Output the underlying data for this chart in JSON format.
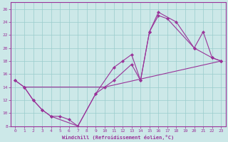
{
  "bg_color": "#cce8e8",
  "line_color": "#993399",
  "grid_color": "#99cccc",
  "xlabel": "Windchill (Refroidissement éolien,°C)",
  "xlim": [
    -0.5,
    23.5
  ],
  "ylim": [
    8,
    27
  ],
  "xticks": [
    0,
    1,
    2,
    3,
    4,
    5,
    6,
    7,
    8,
    9,
    10,
    11,
    12,
    13,
    14,
    15,
    16,
    17,
    18,
    19,
    20,
    21,
    22,
    23
  ],
  "yticks": [
    8,
    10,
    12,
    14,
    16,
    18,
    20,
    22,
    24,
    26
  ],
  "line1_x": [
    0,
    1,
    10,
    23
  ],
  "line1_y": [
    15,
    14,
    14,
    18
  ],
  "line2_x": [
    0,
    1,
    2,
    3,
    4,
    5,
    6,
    7,
    9,
    11,
    13,
    14,
    15,
    16,
    17,
    20,
    21,
    22,
    23
  ],
  "line2_y": [
    15,
    14,
    12,
    10.5,
    9.5,
    9.5,
    9,
    8,
    13,
    15,
    17.5,
    15,
    22.5,
    25,
    24.5,
    20,
    22.5,
    18.5,
    18
  ],
  "line3_x": [
    1,
    2,
    3,
    4,
    7,
    9,
    11,
    12,
    13,
    14,
    15,
    16,
    18,
    20,
    22,
    23
  ],
  "line3_y": [
    14,
    12,
    10.5,
    9.5,
    8,
    13,
    17,
    18,
    19,
    15,
    22.5,
    25.5,
    24,
    20,
    18.5,
    18
  ]
}
